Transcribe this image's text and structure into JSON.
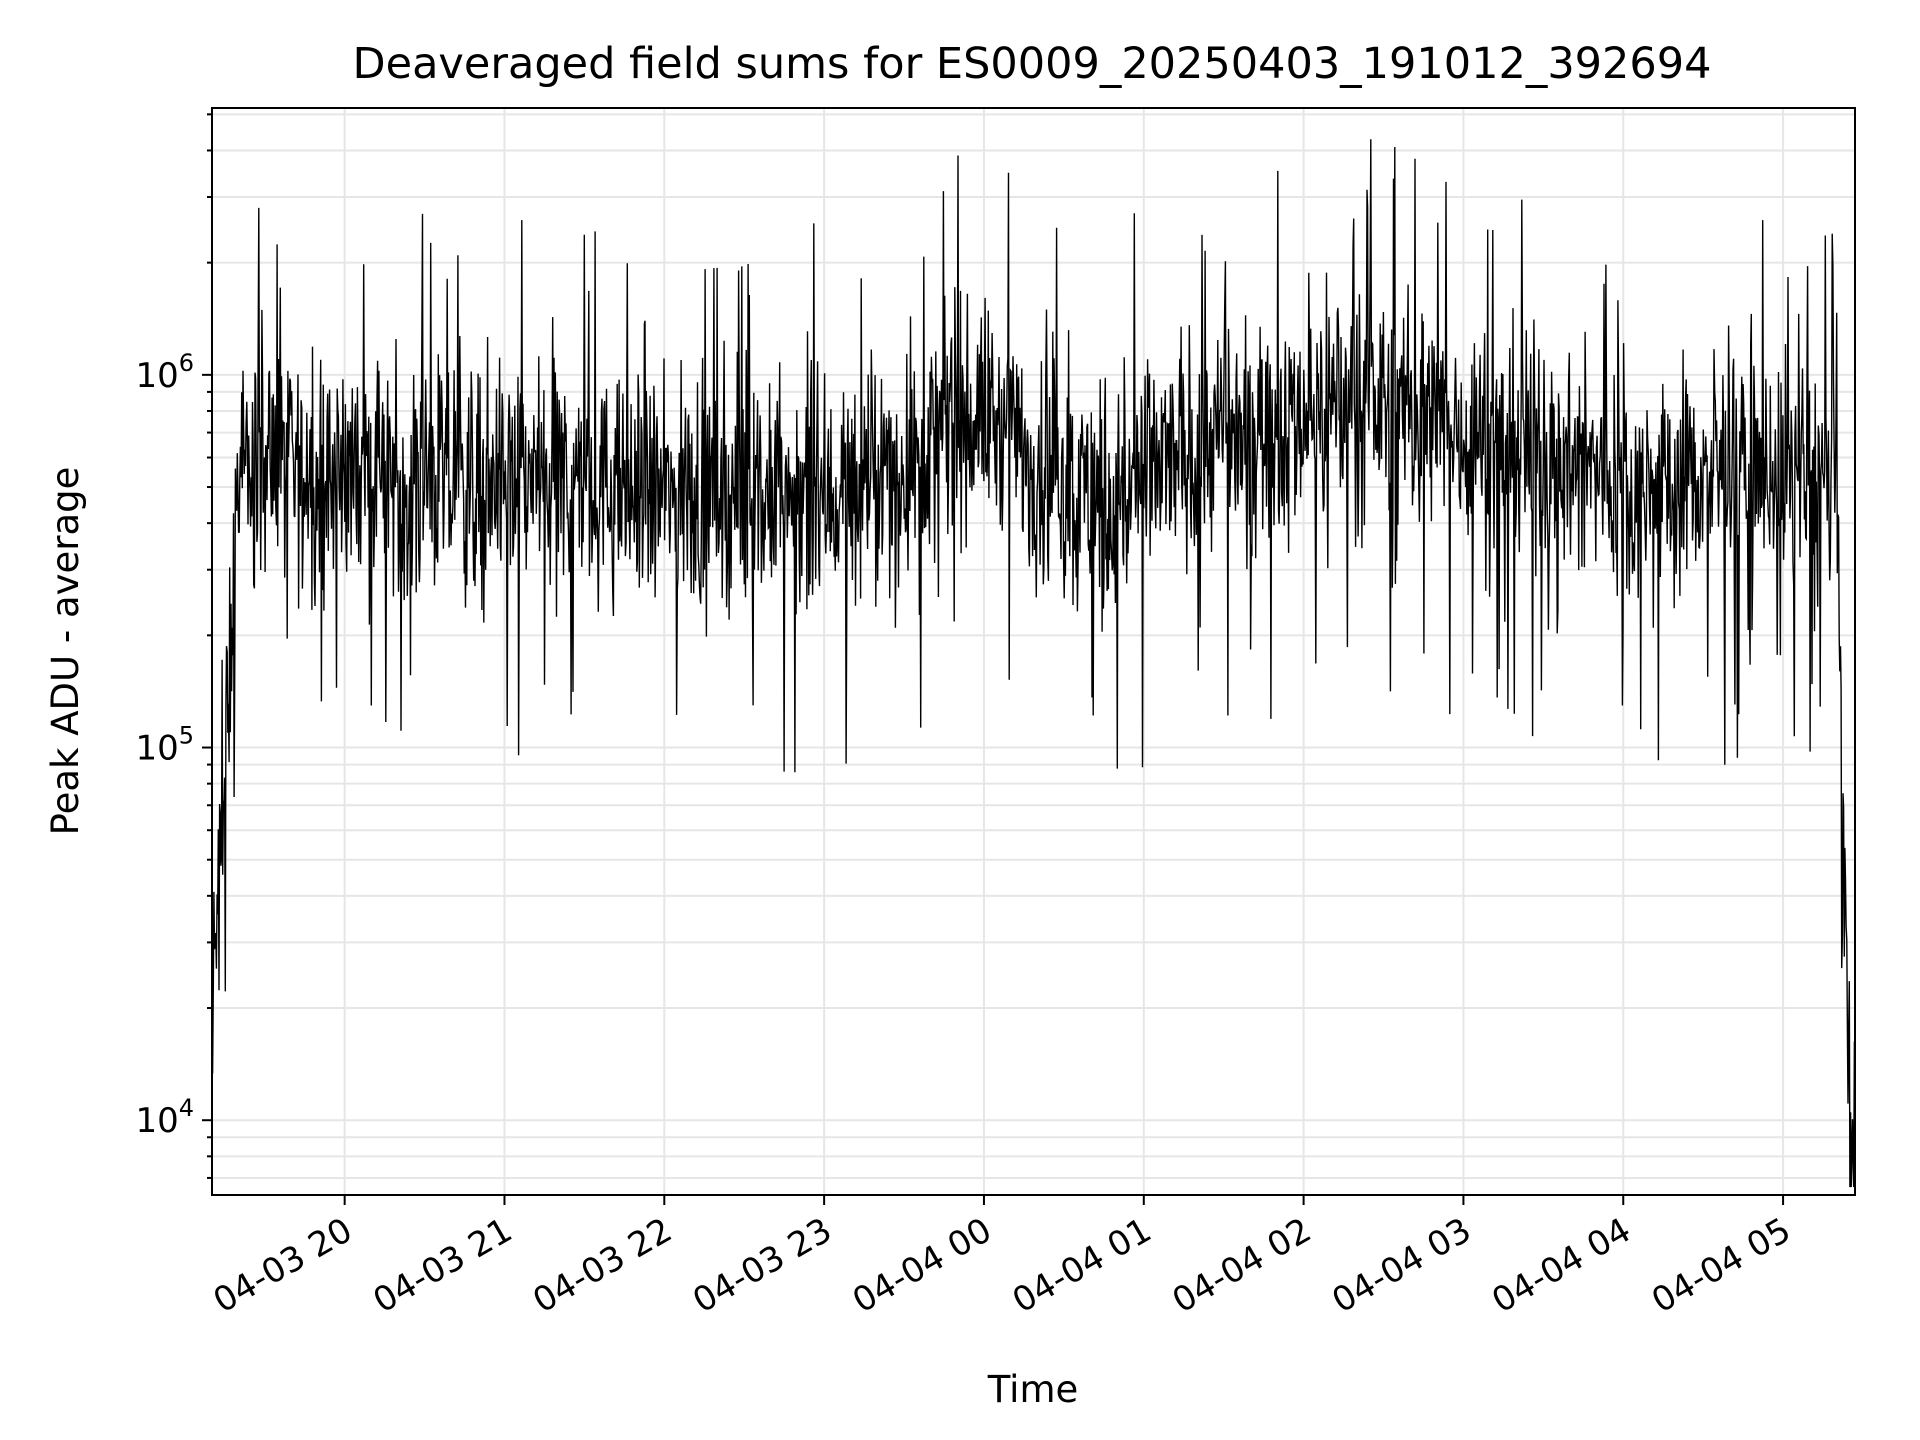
{
  "chart_data": {
    "type": "line",
    "title": "Deaveraged field sums for ES0009_20250403_191012_392694",
    "xlabel": "Time",
    "ylabel": "Peak ADU - average",
    "x_start": "2025-04-03T19:10:12",
    "x_end": "2025-04-04T05:27:00",
    "x_ticks": [
      "04-03 20",
      "04-03 21",
      "04-03 22",
      "04-03 23",
      "04-04 00",
      "04-04 01",
      "04-04 02",
      "04-04 03",
      "04-04 04",
      "04-04 05"
    ],
    "y_scale": "log",
    "ylim": [
      6300,
      5200000
    ],
    "y_ticks": [
      {
        "base": "10",
        "exp": "4",
        "value": 10000
      },
      {
        "base": "10",
        "exp": "5",
        "value": 100000
      },
      {
        "base": "10",
        "exp": "6",
        "value": 1000000
      }
    ],
    "grid": true,
    "line_color": "#000000",
    "grid_color": "#e6e6e6",
    "series": [
      {
        "x": [
          "2025-04-03T19:10",
          "2025-04-03T19:20",
          "2025-04-03T19:30",
          "2025-04-03T19:40",
          "2025-04-03T19:50",
          "2025-04-03T20:00",
          "2025-04-03T20:15",
          "2025-04-03T20:30",
          "2025-04-03T20:45",
          "2025-04-03T21:00",
          "2025-04-03T21:15",
          "2025-04-03T21:30",
          "2025-04-03T21:45",
          "2025-04-03T22:00",
          "2025-04-03T22:15",
          "2025-04-03T22:30",
          "2025-04-03T22:45",
          "2025-04-03T23:00",
          "2025-04-03T23:15",
          "2025-04-03T23:30",
          "2025-04-03T23:45",
          "2025-04-04T00:00",
          "2025-04-04T00:15",
          "2025-04-04T00:30",
          "2025-04-04T00:45",
          "2025-04-04T01:00",
          "2025-04-04T01:15",
          "2025-04-04T01:30",
          "2025-04-04T01:45",
          "2025-04-04T02:00",
          "2025-04-04T02:15",
          "2025-04-04T02:30",
          "2025-04-04T02:45",
          "2025-04-04T03:00",
          "2025-04-04T03:15",
          "2025-04-04T03:30",
          "2025-04-04T03:45",
          "2025-04-04T04:00",
          "2025-04-04T04:15",
          "2025-04-04T04:30",
          "2025-04-04T04:45",
          "2025-04-04T05:00",
          "2025-04-04T05:10",
          "2025-04-04T05:20",
          "2025-04-04T05:25"
        ],
        "y": [
          15000,
          500000,
          600000,
          550000,
          520000,
          560000,
          540000,
          520000,
          500000,
          530000,
          520000,
          500000,
          480000,
          470000,
          480000,
          460000,
          450000,
          470000,
          500000,
          560000,
          700000,
          800000,
          620000,
          500000,
          450000,
          520000,
          620000,
          680000,
          720000,
          780000,
          850000,
          820000,
          760000,
          700000,
          650000,
          620000,
          560000,
          520000,
          500000,
          540000,
          580000,
          560000,
          520000,
          500000,
          9000
        ]
      }
    ]
  }
}
